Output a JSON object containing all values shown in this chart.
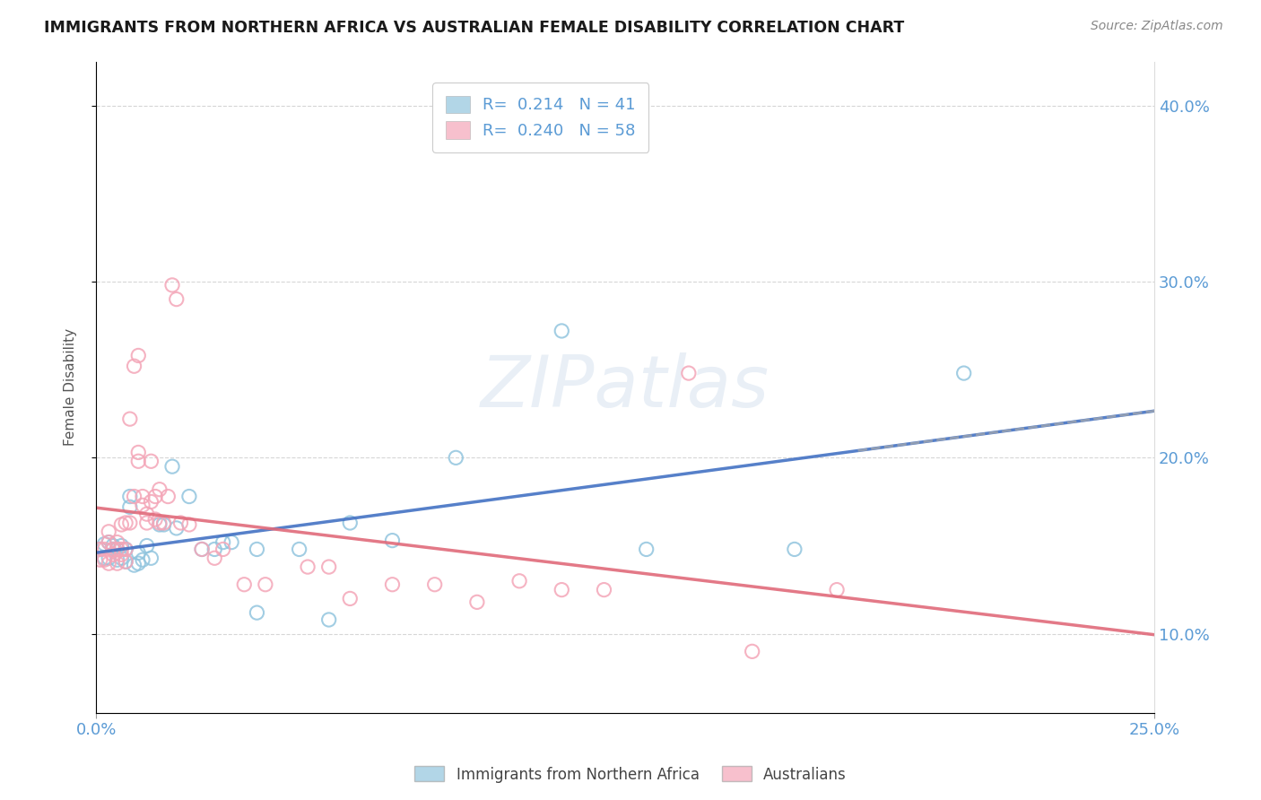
{
  "title": "IMMIGRANTS FROM NORTHERN AFRICA VS AUSTRALIAN FEMALE DISABILITY CORRELATION CHART",
  "source": "Source: ZipAtlas.com",
  "ylabel": "Female Disability",
  "xlim": [
    0.0,
    0.25
  ],
  "ylim": [
    0.055,
    0.425
  ],
  "yticks": [
    0.1,
    0.2,
    0.3,
    0.4
  ],
  "ytick_labels": [
    "10.0%",
    "20.0%",
    "30.0%",
    "40.0%"
  ],
  "xticks": [
    0.0,
    0.25
  ],
  "xtick_labels": [
    "0.0%",
    "25.0%"
  ],
  "legend_r1": "R=  0.214",
  "legend_n1": "N = 41",
  "legend_r2": "R=  0.240",
  "legend_n2": "N = 58",
  "watermark": "ZIPatlas",
  "blue_color": "#92c5de",
  "pink_color": "#f4a6b8",
  "tick_color": "#5b9bd5",
  "blue_scatter": [
    [
      0.001,
      0.148
    ],
    [
      0.002,
      0.143
    ],
    [
      0.002,
      0.151
    ],
    [
      0.003,
      0.143
    ],
    [
      0.003,
      0.152
    ],
    [
      0.004,
      0.148
    ],
    [
      0.004,
      0.15
    ],
    [
      0.005,
      0.142
    ],
    [
      0.005,
      0.148
    ],
    [
      0.006,
      0.143
    ],
    [
      0.006,
      0.15
    ],
    [
      0.007,
      0.141
    ],
    [
      0.007,
      0.148
    ],
    [
      0.008,
      0.172
    ],
    [
      0.008,
      0.178
    ],
    [
      0.009,
      0.139
    ],
    [
      0.01,
      0.14
    ],
    [
      0.01,
      0.146
    ],
    [
      0.011,
      0.142
    ],
    [
      0.012,
      0.15
    ],
    [
      0.013,
      0.143
    ],
    [
      0.015,
      0.162
    ],
    [
      0.016,
      0.162
    ],
    [
      0.018,
      0.195
    ],
    [
      0.019,
      0.16
    ],
    [
      0.022,
      0.178
    ],
    [
      0.025,
      0.148
    ],
    [
      0.028,
      0.148
    ],
    [
      0.03,
      0.152
    ],
    [
      0.032,
      0.152
    ],
    [
      0.038,
      0.148
    ],
    [
      0.038,
      0.112
    ],
    [
      0.048,
      0.148
    ],
    [
      0.055,
      0.108
    ],
    [
      0.06,
      0.163
    ],
    [
      0.07,
      0.153
    ],
    [
      0.085,
      0.2
    ],
    [
      0.11,
      0.272
    ],
    [
      0.13,
      0.148
    ],
    [
      0.165,
      0.148
    ],
    [
      0.205,
      0.248
    ]
  ],
  "pink_scatter": [
    [
      0.001,
      0.142
    ],
    [
      0.001,
      0.148
    ],
    [
      0.002,
      0.148
    ],
    [
      0.002,
      0.142
    ],
    [
      0.003,
      0.14
    ],
    [
      0.003,
      0.152
    ],
    [
      0.003,
      0.158
    ],
    [
      0.004,
      0.145
    ],
    [
      0.004,
      0.148
    ],
    [
      0.005,
      0.14
    ],
    [
      0.005,
      0.148
    ],
    [
      0.005,
      0.152
    ],
    [
      0.006,
      0.145
    ],
    [
      0.006,
      0.148
    ],
    [
      0.006,
      0.162
    ],
    [
      0.007,
      0.141
    ],
    [
      0.007,
      0.148
    ],
    [
      0.007,
      0.163
    ],
    [
      0.008,
      0.163
    ],
    [
      0.008,
      0.222
    ],
    [
      0.009,
      0.178
    ],
    [
      0.009,
      0.252
    ],
    [
      0.01,
      0.198
    ],
    [
      0.01,
      0.203
    ],
    [
      0.01,
      0.258
    ],
    [
      0.011,
      0.173
    ],
    [
      0.011,
      0.178
    ],
    [
      0.012,
      0.163
    ],
    [
      0.012,
      0.168
    ],
    [
      0.013,
      0.175
    ],
    [
      0.013,
      0.198
    ],
    [
      0.014,
      0.165
    ],
    [
      0.014,
      0.178
    ],
    [
      0.015,
      0.163
    ],
    [
      0.015,
      0.182
    ],
    [
      0.016,
      0.163
    ],
    [
      0.017,
      0.178
    ],
    [
      0.018,
      0.298
    ],
    [
      0.019,
      0.29
    ],
    [
      0.02,
      0.163
    ],
    [
      0.022,
      0.162
    ],
    [
      0.025,
      0.148
    ],
    [
      0.028,
      0.143
    ],
    [
      0.03,
      0.148
    ],
    [
      0.035,
      0.128
    ],
    [
      0.04,
      0.128
    ],
    [
      0.05,
      0.138
    ],
    [
      0.055,
      0.138
    ],
    [
      0.06,
      0.12
    ],
    [
      0.07,
      0.128
    ],
    [
      0.08,
      0.128
    ],
    [
      0.09,
      0.118
    ],
    [
      0.1,
      0.13
    ],
    [
      0.11,
      0.125
    ],
    [
      0.12,
      0.125
    ],
    [
      0.14,
      0.248
    ],
    [
      0.155,
      0.09
    ],
    [
      0.175,
      0.125
    ]
  ]
}
